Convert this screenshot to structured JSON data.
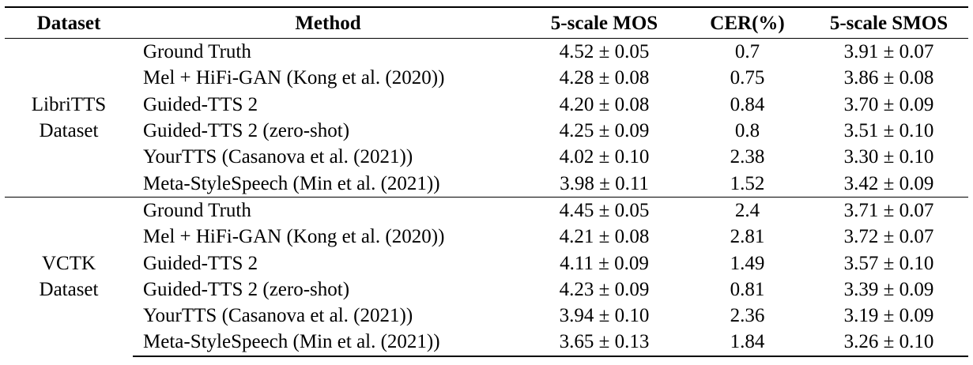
{
  "table": {
    "headers": {
      "dataset": "Dataset",
      "method": "Method",
      "mos": "5-scale MOS",
      "cer": "CER(%)",
      "smos": "5-scale SMOS"
    },
    "groups": [
      {
        "dataset_line1": "LibriTTS",
        "dataset_line2": "Dataset",
        "rows": [
          {
            "method": "Ground Truth",
            "mos": "4.52 ± 0.05",
            "cer": "0.7",
            "smos": "3.91 ± 0.07"
          },
          {
            "method": "Mel + HiFi-GAN (Kong et al. (2020))",
            "mos": "4.28 ± 0.08",
            "cer": "0.75",
            "smos": "3.86 ± 0.08"
          },
          {
            "method": "Guided-TTS 2",
            "mos": "4.20 ± 0.08",
            "cer": "0.84",
            "smos": "3.70 ± 0.09"
          },
          {
            "method": "Guided-TTS 2 (zero-shot)",
            "mos": "4.25 ± 0.09",
            "cer": "0.8",
            "smos": "3.51 ± 0.10"
          },
          {
            "method": "YourTTS (Casanova et al. (2021))",
            "mos": "4.02 ± 0.10",
            "cer": "2.38",
            "smos": "3.30 ± 0.10"
          },
          {
            "method": "Meta-StyleSpeech (Min et al. (2021))",
            "mos": "3.98 ± 0.11",
            "cer": "1.52",
            "smos": "3.42 ± 0.09"
          }
        ]
      },
      {
        "dataset_line1": "VCTK",
        "dataset_line2": "Dataset",
        "rows": [
          {
            "method": "Ground Truth",
            "mos": "4.45 ± 0.05",
            "cer": "2.4",
            "smos": "3.71 ± 0.07"
          },
          {
            "method": "Mel + HiFi-GAN (Kong et al. (2020))",
            "mos": "4.21 ± 0.08",
            "cer": "2.81",
            "smos": "3.72 ± 0.07"
          },
          {
            "method": "Guided-TTS 2",
            "mos": "4.11 ± 0.09",
            "cer": "1.49",
            "smos": "3.57 ± 0.10"
          },
          {
            "method": "Guided-TTS 2 (zero-shot)",
            "mos": "4.23 ± 0.09",
            "cer": "0.81",
            "smos": "3.39 ± 0.09"
          },
          {
            "method": "YourTTS (Casanova et al. (2021))",
            "mos": "3.94 ± 0.10",
            "cer": "2.36",
            "smos": "3.19 ± 0.09"
          },
          {
            "method": "Meta-StyleSpeech (Min et al. (2021))",
            "mos": "3.65 ± 0.13",
            "cer": "1.84",
            "smos": "3.26 ± 0.10"
          }
        ]
      }
    ]
  }
}
